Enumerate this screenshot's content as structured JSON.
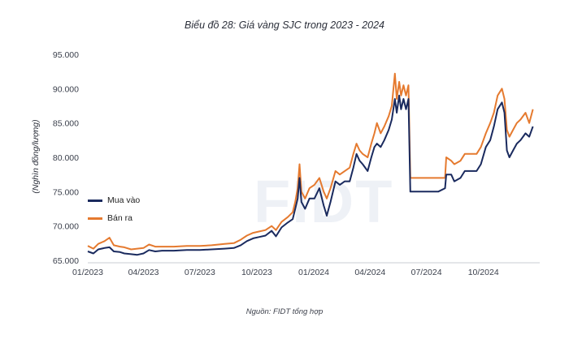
{
  "chart_data": {
    "type": "line",
    "title": "Biểu đồ 28: Giá vàng SJC trong 2023 - 2024",
    "ylabel": "(Nghìn đồng/lượng)",
    "xlabel": "",
    "source": "Nguồn: FIDT tổng hợp",
    "ylim": [
      65000,
      95000
    ],
    "xlim": [
      "2023-01-01",
      "2024-12-31"
    ],
    "y_ticks": [
      "65.000",
      "70.000",
      "75.000",
      "80.000",
      "85.000",
      "90.000",
      "95.000"
    ],
    "y_tick_values": [
      65000,
      70000,
      75000,
      80000,
      85000,
      90000,
      95000
    ],
    "x_ticks": [
      "01/2023",
      "04/2023",
      "07/2023",
      "10/2023",
      "01/2024",
      "04/2024",
      "07/2024",
      "10/2024"
    ],
    "x_tick_dates": [
      "2023-01-01",
      "2023-04-01",
      "2023-07-01",
      "2023-10-01",
      "2024-01-01",
      "2024-04-01",
      "2024-07-01",
      "2024-10-01"
    ],
    "grid": false,
    "legend_position": "left-middle",
    "watermark": "FIDT",
    "series": [
      {
        "name": "Mua vào",
        "color": "#1a2a5e",
        "points": [
          [
            "2023-01-01",
            66300
          ],
          [
            "2023-01-10",
            66000
          ],
          [
            "2023-01-18",
            66600
          ],
          [
            "2023-01-28",
            66800
          ],
          [
            "2023-02-05",
            66900
          ],
          [
            "2023-02-12",
            66300
          ],
          [
            "2023-02-22",
            66200
          ],
          [
            "2023-03-01",
            66000
          ],
          [
            "2023-03-12",
            65900
          ],
          [
            "2023-03-22",
            65800
          ],
          [
            "2023-04-01",
            66000
          ],
          [
            "2023-04-10",
            66500
          ],
          [
            "2023-04-20",
            66300
          ],
          [
            "2023-05-01",
            66400
          ],
          [
            "2023-05-20",
            66400
          ],
          [
            "2023-06-10",
            66500
          ],
          [
            "2023-07-01",
            66500
          ],
          [
            "2023-07-20",
            66600
          ],
          [
            "2023-08-10",
            66700
          ],
          [
            "2023-08-25",
            66800
          ],
          [
            "2023-09-05",
            67200
          ],
          [
            "2023-09-15",
            67800
          ],
          [
            "2023-09-25",
            68200
          ],
          [
            "2023-10-05",
            68400
          ],
          [
            "2023-10-15",
            68600
          ],
          [
            "2023-10-25",
            69300
          ],
          [
            "2023-11-01",
            68500
          ],
          [
            "2023-11-10",
            69800
          ],
          [
            "2023-11-20",
            70500
          ],
          [
            "2023-11-28",
            71000
          ],
          [
            "2023-12-02",
            72500
          ],
          [
            "2023-12-06",
            74000
          ],
          [
            "2023-12-09",
            77000
          ],
          [
            "2023-12-12",
            73500
          ],
          [
            "2023-12-18",
            72500
          ],
          [
            "2023-12-25",
            74000
          ],
          [
            "2024-01-02",
            74000
          ],
          [
            "2024-01-10",
            75500
          ],
          [
            "2024-01-17",
            73000
          ],
          [
            "2024-01-22",
            71500
          ],
          [
            "2024-01-28",
            73500
          ],
          [
            "2024-02-05",
            76500
          ],
          [
            "2024-02-12",
            76000
          ],
          [
            "2024-02-20",
            76500
          ],
          [
            "2024-02-28",
            76500
          ],
          [
            "2024-03-05",
            78500
          ],
          [
            "2024-03-10",
            80500
          ],
          [
            "2024-03-15",
            79500
          ],
          [
            "2024-03-20",
            79000
          ],
          [
            "2024-03-28",
            78000
          ],
          [
            "2024-04-03",
            80000
          ],
          [
            "2024-04-08",
            81500
          ],
          [
            "2024-04-12",
            82000
          ],
          [
            "2024-04-18",
            81500
          ],
          [
            "2024-04-24",
            82500
          ],
          [
            "2024-05-01",
            84000
          ],
          [
            "2024-05-06",
            85500
          ],
          [
            "2024-05-11",
            88500
          ],
          [
            "2024-05-14",
            86500
          ],
          [
            "2024-05-18",
            89000
          ],
          [
            "2024-05-21",
            87000
          ],
          [
            "2024-05-25",
            88500
          ],
          [
            "2024-05-29",
            87000
          ],
          [
            "2024-06-02",
            88500
          ],
          [
            "2024-06-05",
            75000
          ],
          [
            "2024-06-20",
            75000
          ],
          [
            "2024-07-10",
            75000
          ],
          [
            "2024-07-20",
            75000
          ],
          [
            "2024-07-31",
            75500
          ],
          [
            "2024-08-02",
            77500
          ],
          [
            "2024-08-10",
            77500
          ],
          [
            "2024-08-15",
            76500
          ],
          [
            "2024-08-25",
            77000
          ],
          [
            "2024-09-01",
            78000
          ],
          [
            "2024-09-10",
            78000
          ],
          [
            "2024-09-20",
            78000
          ],
          [
            "2024-09-27",
            79000
          ],
          [
            "2024-10-05",
            81500
          ],
          [
            "2024-10-12",
            82500
          ],
          [
            "2024-10-18",
            84500
          ],
          [
            "2024-10-24",
            87000
          ],
          [
            "2024-10-31",
            88000
          ],
          [
            "2024-11-04",
            86500
          ],
          [
            "2024-11-08",
            81000
          ],
          [
            "2024-11-12",
            80000
          ],
          [
            "2024-11-18",
            81000
          ],
          [
            "2024-11-24",
            82000
          ],
          [
            "2024-11-30",
            82500
          ],
          [
            "2024-12-08",
            83500
          ],
          [
            "2024-12-14",
            83000
          ],
          [
            "2024-12-20",
            84500
          ]
        ]
      },
      {
        "name": "Bán ra",
        "color": "#e57a2f",
        "points": [
          [
            "2023-01-01",
            67100
          ],
          [
            "2023-01-10",
            66700
          ],
          [
            "2023-01-18",
            67400
          ],
          [
            "2023-01-28",
            67800
          ],
          [
            "2023-02-05",
            68300
          ],
          [
            "2023-02-12",
            67200
          ],
          [
            "2023-02-22",
            67000
          ],
          [
            "2023-03-01",
            66900
          ],
          [
            "2023-03-12",
            66600
          ],
          [
            "2023-03-22",
            66700
          ],
          [
            "2023-04-01",
            66800
          ],
          [
            "2023-04-10",
            67300
          ],
          [
            "2023-04-20",
            67000
          ],
          [
            "2023-05-01",
            67000
          ],
          [
            "2023-05-20",
            67000
          ],
          [
            "2023-06-10",
            67100
          ],
          [
            "2023-07-01",
            67100
          ],
          [
            "2023-07-20",
            67200
          ],
          [
            "2023-08-10",
            67400
          ],
          [
            "2023-08-25",
            67500
          ],
          [
            "2023-09-05",
            68000
          ],
          [
            "2023-09-15",
            68600
          ],
          [
            "2023-09-25",
            69000
          ],
          [
            "2023-10-05",
            69200
          ],
          [
            "2023-10-15",
            69400
          ],
          [
            "2023-10-25",
            70000
          ],
          [
            "2023-11-01",
            69400
          ],
          [
            "2023-11-10",
            70600
          ],
          [
            "2023-11-20",
            71300
          ],
          [
            "2023-11-28",
            72000
          ],
          [
            "2023-12-02",
            73500
          ],
          [
            "2023-12-06",
            75500
          ],
          [
            "2023-12-09",
            79000
          ],
          [
            "2023-12-12",
            75000
          ],
          [
            "2023-12-18",
            74000
          ],
          [
            "2023-12-25",
            75500
          ],
          [
            "2024-01-02",
            76000
          ],
          [
            "2024-01-10",
            77000
          ],
          [
            "2024-01-17",
            75000
          ],
          [
            "2024-01-22",
            74000
          ],
          [
            "2024-01-28",
            75500
          ],
          [
            "2024-02-05",
            78000
          ],
          [
            "2024-02-12",
            77500
          ],
          [
            "2024-02-20",
            78000
          ],
          [
            "2024-02-28",
            78500
          ],
          [
            "2024-03-05",
            80500
          ],
          [
            "2024-03-10",
            82000
          ],
          [
            "2024-03-15",
            81000
          ],
          [
            "2024-03-20",
            80500
          ],
          [
            "2024-03-28",
            80000
          ],
          [
            "2024-04-03",
            82000
          ],
          [
            "2024-04-08",
            83500
          ],
          [
            "2024-04-12",
            85000
          ],
          [
            "2024-04-18",
            83500
          ],
          [
            "2024-04-24",
            84500
          ],
          [
            "2024-05-01",
            86000
          ],
          [
            "2024-05-06",
            87500
          ],
          [
            "2024-05-11",
            92200
          ],
          [
            "2024-05-14",
            88500
          ],
          [
            "2024-05-18",
            91000
          ],
          [
            "2024-05-21",
            89000
          ],
          [
            "2024-05-25",
            90500
          ],
          [
            "2024-05-29",
            89000
          ],
          [
            "2024-06-02",
            90500
          ],
          [
            "2024-06-05",
            77000
          ],
          [
            "2024-06-20",
            77000
          ],
          [
            "2024-07-10",
            77000
          ],
          [
            "2024-07-20",
            77000
          ],
          [
            "2024-07-31",
            77000
          ],
          [
            "2024-08-02",
            80000
          ],
          [
            "2024-08-10",
            79500
          ],
          [
            "2024-08-15",
            79000
          ],
          [
            "2024-08-25",
            79500
          ],
          [
            "2024-09-01",
            80500
          ],
          [
            "2024-09-10",
            80500
          ],
          [
            "2024-09-20",
            80500
          ],
          [
            "2024-09-27",
            81500
          ],
          [
            "2024-10-05",
            83500
          ],
          [
            "2024-10-12",
            85000
          ],
          [
            "2024-10-18",
            86500
          ],
          [
            "2024-10-24",
            89000
          ],
          [
            "2024-10-31",
            90000
          ],
          [
            "2024-11-04",
            88500
          ],
          [
            "2024-11-08",
            84000
          ],
          [
            "2024-11-12",
            83000
          ],
          [
            "2024-11-18",
            84000
          ],
          [
            "2024-11-24",
            85000
          ],
          [
            "2024-11-30",
            85500
          ],
          [
            "2024-12-08",
            86500
          ],
          [
            "2024-12-14",
            85000
          ],
          [
            "2024-12-20",
            87000
          ]
        ]
      }
    ]
  }
}
